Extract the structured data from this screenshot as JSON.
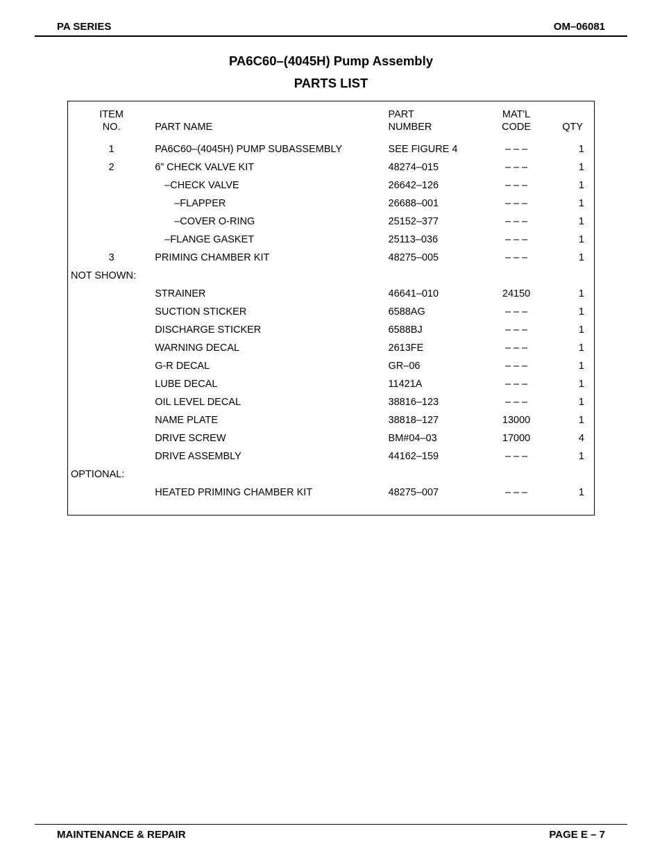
{
  "header": {
    "left": "PA SERIES",
    "right": "OM–06081"
  },
  "title": "PA6C60–(4045H) Pump Assembly",
  "subtitle": "PARTS LIST",
  "columns": {
    "item_line1": "ITEM",
    "item_line2": "NO.",
    "name": "PART NAME",
    "partno_line1": "PART",
    "partno_line2": "NUMBER",
    "matl_line1": "MAT'L",
    "matl_line2": "CODE",
    "qty": "QTY"
  },
  "rows": [
    {
      "type": "spacer"
    },
    {
      "item": "1",
      "name": "PA6C60–(4045H) PUMP SUBASSEMBLY",
      "partno": "SEE FIGURE 4",
      "matl": "– – –",
      "qty": "1",
      "indent": 1
    },
    {
      "item": "2",
      "name": "6” CHECK VALVE KIT",
      "partno": "48274–015",
      "matl": "– – –",
      "qty": "1",
      "indent": 1
    },
    {
      "item": "",
      "name": "–CHECK VALVE",
      "partno": "26642–126",
      "matl": "– – –",
      "qty": "1",
      "indent": 2
    },
    {
      "item": "",
      "name": "–FLAPPER",
      "partno": "26688–001",
      "matl": "– – –",
      "qty": "1",
      "indent": 3
    },
    {
      "item": "",
      "name": "–COVER O-RING",
      "partno": "25152–377",
      "matl": "– – –",
      "qty": "1",
      "indent": 3
    },
    {
      "item": "",
      "name": "–FLANGE GASKET",
      "partno": "25113–036",
      "matl": "– – –",
      "qty": "1",
      "indent": 2
    },
    {
      "item": "3",
      "name": "PRIMING CHAMBER KIT",
      "partno": "48275–005",
      "matl": "– – –",
      "qty": "1",
      "indent": 1
    },
    {
      "type": "section",
      "label": "NOT SHOWN:"
    },
    {
      "item": "",
      "name": "STRAINER",
      "partno": "46641–010",
      "matl": "24150",
      "qty": "1",
      "indent": 1
    },
    {
      "item": "",
      "name": "SUCTION STICKER",
      "partno": "6588AG",
      "matl": "– – –",
      "qty": "1",
      "indent": 1
    },
    {
      "item": "",
      "name": "DISCHARGE STICKER",
      "partno": "6588BJ",
      "matl": "– – –",
      "qty": "1",
      "indent": 1
    },
    {
      "item": "",
      "name": "WARNING DECAL",
      "partno": "2613FE",
      "matl": "– – –",
      "qty": "1",
      "indent": 1
    },
    {
      "item": "",
      "name": "G-R DECAL",
      "partno": "GR–06",
      "matl": "– – –",
      "qty": "1",
      "indent": 1
    },
    {
      "item": "",
      "name": "LUBE DECAL",
      "partno": "11421A",
      "matl": "– – –",
      "qty": "1",
      "indent": 1
    },
    {
      "item": "",
      "name": "OIL LEVEL DECAL",
      "partno": "38816–123",
      "matl": "– – –",
      "qty": "1",
      "indent": 1
    },
    {
      "item": "",
      "name": "NAME PLATE",
      "partno": "38818–127",
      "matl": "13000",
      "qty": "1",
      "indent": 1
    },
    {
      "item": "",
      "name": "DRIVE SCREW",
      "partno": "BM#04–03",
      "matl": "17000",
      "qty": "4",
      "indent": 1
    },
    {
      "item": "",
      "name": "DRIVE ASSEMBLY",
      "partno": "44162–159",
      "matl": "– – –",
      "qty": "1",
      "indent": 1
    },
    {
      "type": "section",
      "label": "OPTIONAL:"
    },
    {
      "item": "",
      "name": "HEATED PRIMING CHAMBER KIT",
      "partno": "48275–007",
      "matl": "– – –",
      "qty": "1",
      "indent": 1
    }
  ],
  "footer": {
    "left": "MAINTENANCE & REPAIR",
    "right": "PAGE E – 7"
  }
}
